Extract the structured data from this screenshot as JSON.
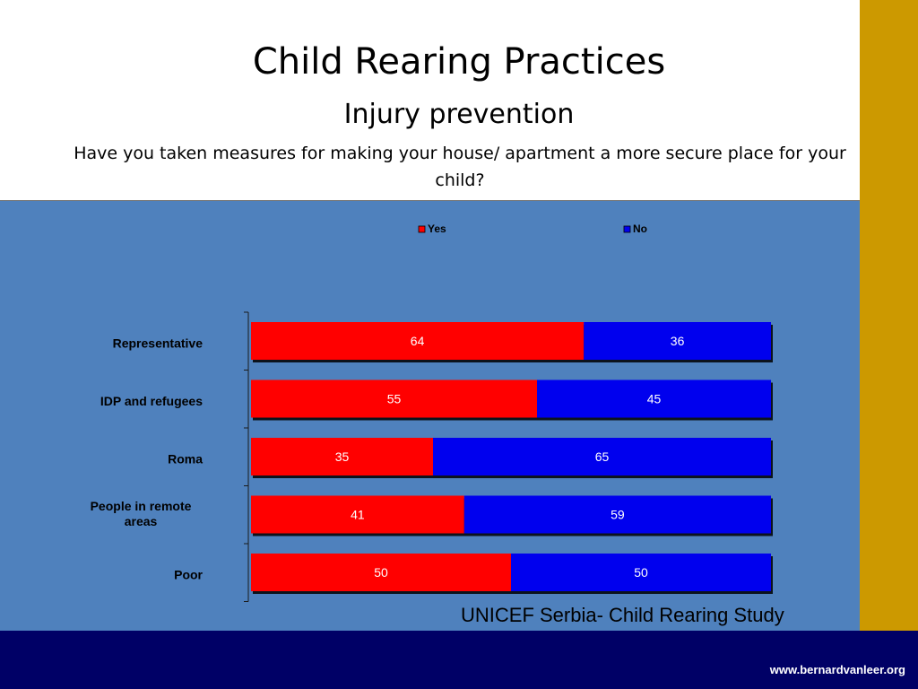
{
  "slide": {
    "title": "Child Rearing Practices",
    "subtitle": "Injury prevention",
    "question": "Have you taken measures for making your house/ apartment a more secure place for your child?",
    "source": "UNICEF Serbia- Child Rearing Study",
    "footer_url": "www.bernardvanleer.org"
  },
  "colors": {
    "yes": "#ff0000",
    "no": "#0000ee",
    "panel": "#4f81bd",
    "gold": "#cc9900",
    "footer": "#000066"
  },
  "chart_data": {
    "type": "bar",
    "orientation": "horizontal",
    "stacked": true,
    "categories": [
      "Representative",
      "IDP and refugees",
      "Roma",
      "People in remote areas",
      "Poor"
    ],
    "series": [
      {
        "name": "Yes",
        "values": [
          64,
          55,
          35,
          41,
          50
        ]
      },
      {
        "name": "No",
        "values": [
          36,
          45,
          65,
          59,
          50
        ]
      }
    ],
    "xlim": [
      0,
      100
    ],
    "legend": "top",
    "grid": false
  }
}
